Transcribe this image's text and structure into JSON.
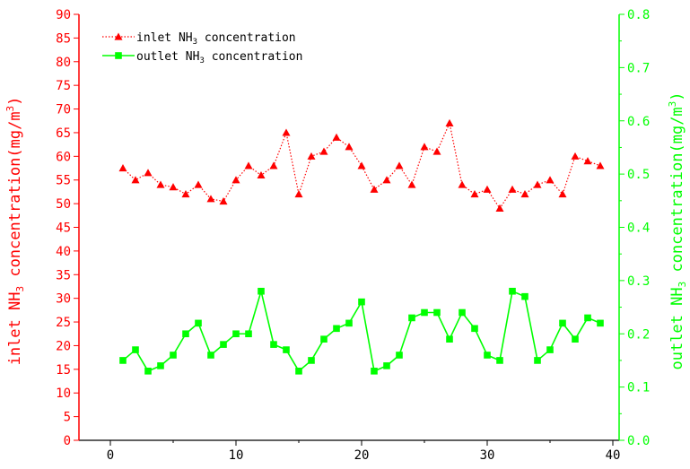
{
  "chart_data": {
    "type": "line",
    "x": [
      1,
      2,
      3,
      4,
      5,
      6,
      7,
      8,
      9,
      10,
      11,
      12,
      13,
      14,
      15,
      16,
      17,
      18,
      19,
      20,
      21,
      22,
      23,
      24,
      25,
      26,
      27,
      28,
      29,
      30,
      31,
      32,
      33,
      34,
      35,
      36,
      37,
      38,
      39
    ],
    "series": [
      {
        "name": "inlet NH3 concentration",
        "axis": "left",
        "color": "#ff0000",
        "marker": "triangle",
        "line_style": "dotted",
        "values": [
          57.5,
          55,
          56.5,
          54,
          53.5,
          52,
          54,
          51,
          50.5,
          55,
          58,
          56,
          58,
          65,
          52,
          60,
          61,
          64,
          62,
          58,
          53,
          55,
          58,
          54,
          62,
          61,
          67,
          54,
          52,
          53,
          49,
          53,
          52,
          54,
          55,
          52,
          60,
          59,
          58
        ]
      },
      {
        "name": "outlet NH3 concentration",
        "axis": "right",
        "color": "#00ff00",
        "marker": "square",
        "line_style": "solid",
        "values": [
          0.15,
          0.17,
          0.13,
          0.14,
          0.16,
          0.2,
          0.22,
          0.16,
          0.18,
          0.2,
          0.2,
          0.28,
          0.18,
          0.17,
          0.13,
          0.15,
          0.19,
          0.21,
          0.22,
          0.26,
          0.13,
          0.14,
          0.16,
          0.23,
          0.24,
          0.24,
          0.19,
          0.24,
          0.21,
          0.16,
          0.15,
          0.28,
          0.27,
          0.15,
          0.17,
          0.22,
          0.19,
          0.23,
          0.22
        ]
      }
    ],
    "legend_labels": {
      "inlet": {
        "pre": "inlet NH",
        "sub": "3",
        "post": " concentration"
      },
      "outlet": {
        "pre": "outlet NH",
        "sub": "3",
        "post": " concentration"
      }
    },
    "ylabel_left": {
      "pre": "inlet NH",
      "sub": "3",
      "mid": " concentration(mg/m",
      "sup": "3",
      "post": ")"
    },
    "ylabel_right": {
      "pre": "outlet NH",
      "sub": "3",
      "mid": " concentration(mg/m",
      "sup": "3",
      "post": ")"
    },
    "xlim": [
      -2.5,
      40.5
    ],
    "ylim_left": [
      0,
      90
    ],
    "ylim_right": [
      0,
      0.8
    ],
    "xticks": [
      "0",
      "10",
      "20",
      "30",
      "40"
    ],
    "xtick_values": [
      0,
      10,
      20,
      30,
      40
    ],
    "yticks_left": [
      "0",
      "5",
      "10",
      "15",
      "20",
      "25",
      "30",
      "35",
      "40",
      "45",
      "50",
      "55",
      "60",
      "65",
      "70",
      "75",
      "80",
      "85",
      "90"
    ],
    "yticks_right": [
      "0.0",
      "0.1",
      "0.2",
      "0.3",
      "0.4",
      "0.5",
      "0.6",
      "0.7",
      "0.8"
    ],
    "legend_position": "top-left",
    "grid": false
  }
}
